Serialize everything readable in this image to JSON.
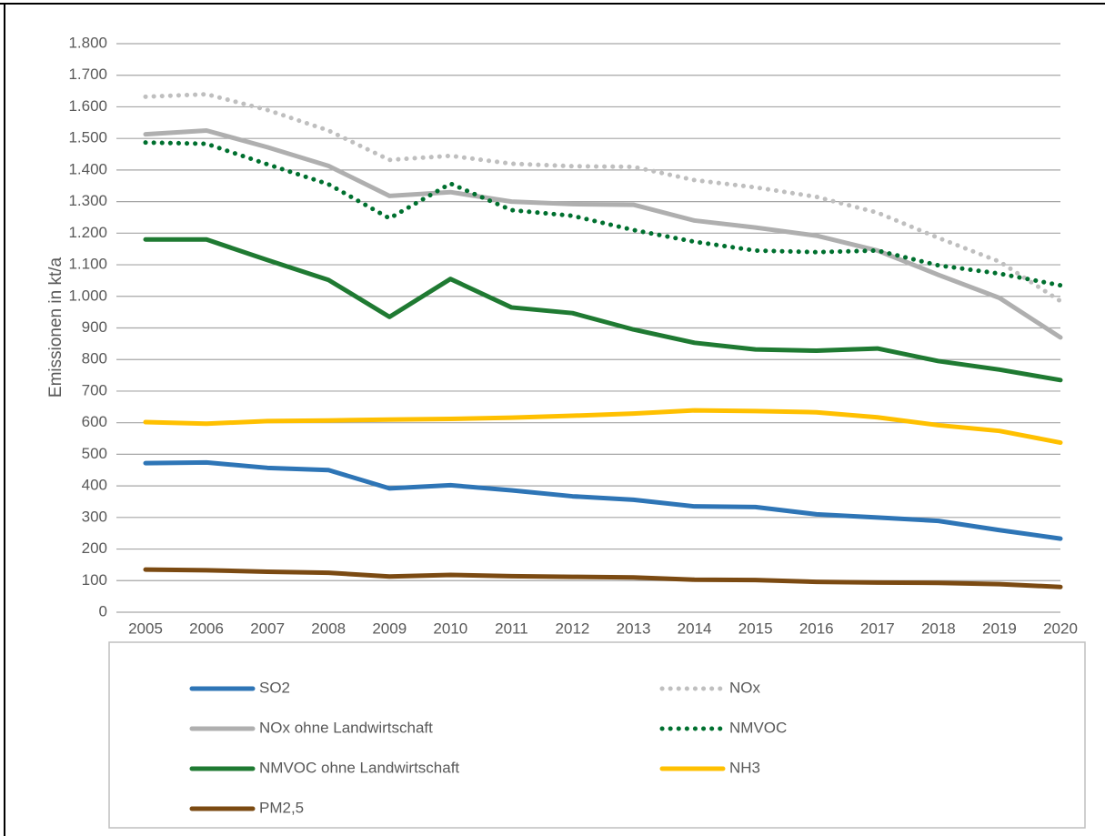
{
  "chart_data": {
    "type": "line",
    "y_axis_label": "Emissionen in kt/a",
    "categories": [
      "2005",
      "2006",
      "2007",
      "2008",
      "2009",
      "2010",
      "2011",
      "2012",
      "2013",
      "2014",
      "2015",
      "2016",
      "2017",
      "2018",
      "2019",
      "2020"
    ],
    "ylim": [
      0,
      1800
    ],
    "yticks": [
      0,
      100,
      200,
      300,
      400,
      500,
      600,
      700,
      800,
      900,
      {
        "value": 1000,
        "label": "1.000"
      },
      {
        "value": 1100,
        "label": "1.100"
      },
      {
        "value": 1200,
        "label": "1.200"
      },
      {
        "value": 1300,
        "label": "1.300"
      },
      {
        "value": 1400,
        "label": "1.400"
      },
      {
        "value": 1500,
        "label": "1.500"
      },
      {
        "value": 1600,
        "label": "1.600"
      },
      {
        "value": 1700,
        "label": "1.700"
      },
      {
        "value": 1800,
        "label": "1.800"
      }
    ],
    "grid": true,
    "legend": "bottom",
    "series": [
      {
        "name": "SO2",
        "color": "#2e75b6",
        "line_style": "solid",
        "values": [
          472,
          474,
          457,
          450,
          392,
          402,
          386,
          367,
          356,
          335,
          333,
          310,
          300,
          289,
          260,
          233
        ]
      },
      {
        "name": "NOx",
        "color": "#bfbfbf",
        "line_style": "dotted",
        "values": [
          1632,
          1640,
          1590,
          1525,
          1432,
          1445,
          1420,
          1412,
          1410,
          1368,
          1345,
          1315,
          1265,
          1185,
          1110,
          985
        ]
      },
      {
        "name": "NOx ohne Landwirtschaft",
        "color": "#afafaf",
        "line_style": "solid",
        "values": [
          1513,
          1525,
          1472,
          1413,
          1318,
          1330,
          1300,
          1292,
          1290,
          1240,
          1218,
          1192,
          1145,
          1068,
          995,
          870
        ]
      },
      {
        "name": "NMVOC",
        "color": "#00702f",
        "line_style": "dotted",
        "values": [
          1487,
          1483,
          1418,
          1355,
          1247,
          1357,
          1273,
          1255,
          1210,
          1173,
          1145,
          1140,
          1145,
          1098,
          1072,
          1035
        ]
      },
      {
        "name": "NMVOC ohne Landwirtschaft",
        "color": "#1f7a32",
        "line_style": "solid",
        "values": [
          1180,
          1180,
          1115,
          1052,
          935,
          1055,
          965,
          947,
          895,
          853,
          832,
          828,
          835,
          795,
          768,
          735
        ]
      },
      {
        "name": "NH3",
        "color": "#ffc000",
        "line_style": "solid",
        "values": [
          602,
          597,
          605,
          607,
          610,
          612,
          616,
          622,
          629,
          639,
          637,
          633,
          617,
          592,
          574,
          537
        ]
      },
      {
        "name": "PM2,5",
        "color": "#7b4a12",
        "line_style": "solid",
        "values": [
          135,
          133,
          128,
          125,
          113,
          118,
          114,
          112,
          110,
          103,
          102,
          96,
          94,
          93,
          89,
          80
        ]
      }
    ]
  }
}
